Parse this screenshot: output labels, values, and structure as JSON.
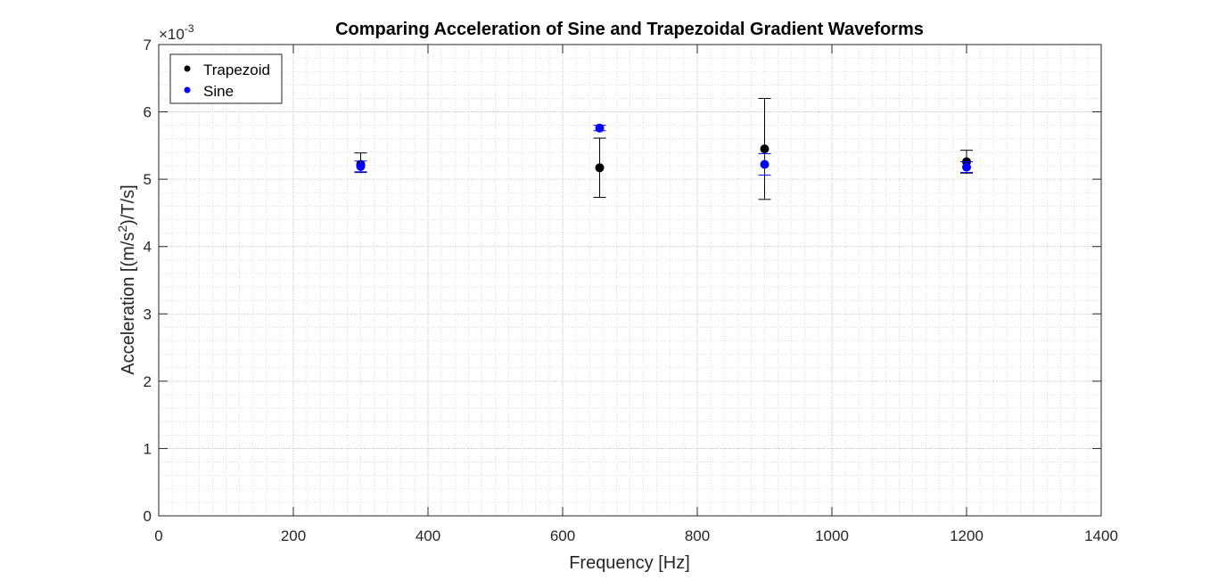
{
  "chart_data": {
    "type": "scatter",
    "title": "Comparing Acceleration of Sine and Trapezoidal Gradient Waveforms",
    "xlabel": "Frequency [Hz]",
    "ylabel_parts": [
      "Acceleration [(m/s",
      "2",
      ")/T/s]"
    ],
    "y_exponent_prefix": "×10",
    "y_exponent": "-3",
    "xlim": [
      0,
      1400
    ],
    "ylim": [
      0,
      7
    ],
    "xticks": [
      0,
      200,
      400,
      600,
      800,
      1000,
      1200,
      1400
    ],
    "yticks": [
      0,
      1,
      2,
      3,
      4,
      5,
      6,
      7
    ],
    "grid": true,
    "minor_grid": true,
    "legend_position": "top-left",
    "series": [
      {
        "name": "Trapezoid",
        "color": "#000000",
        "points": [
          {
            "x": 300,
            "y": 5.22,
            "err_low": 0.12,
            "err_high": 0.17
          },
          {
            "x": 655,
            "y": 5.17,
            "err_low": 0.44,
            "err_high": 0.44
          },
          {
            "x": 900,
            "y": 5.45,
            "err_low": 0.75,
            "err_high": 0.75
          },
          {
            "x": 1200,
            "y": 5.26,
            "err_low": 0.17,
            "err_high": 0.17
          }
        ]
      },
      {
        "name": "Sine",
        "color": "#0000ff",
        "points": [
          {
            "x": 300,
            "y": 5.19,
            "err_low": 0.08,
            "err_high": 0.08
          },
          {
            "x": 655,
            "y": 5.76,
            "err_low": 0.04,
            "err_high": 0.04
          },
          {
            "x": 900,
            "y": 5.22,
            "err_low": 0.16,
            "err_high": 0.16
          },
          {
            "x": 1200,
            "y": 5.18,
            "err_low": 0.08,
            "err_high": 0.08
          }
        ]
      }
    ]
  }
}
